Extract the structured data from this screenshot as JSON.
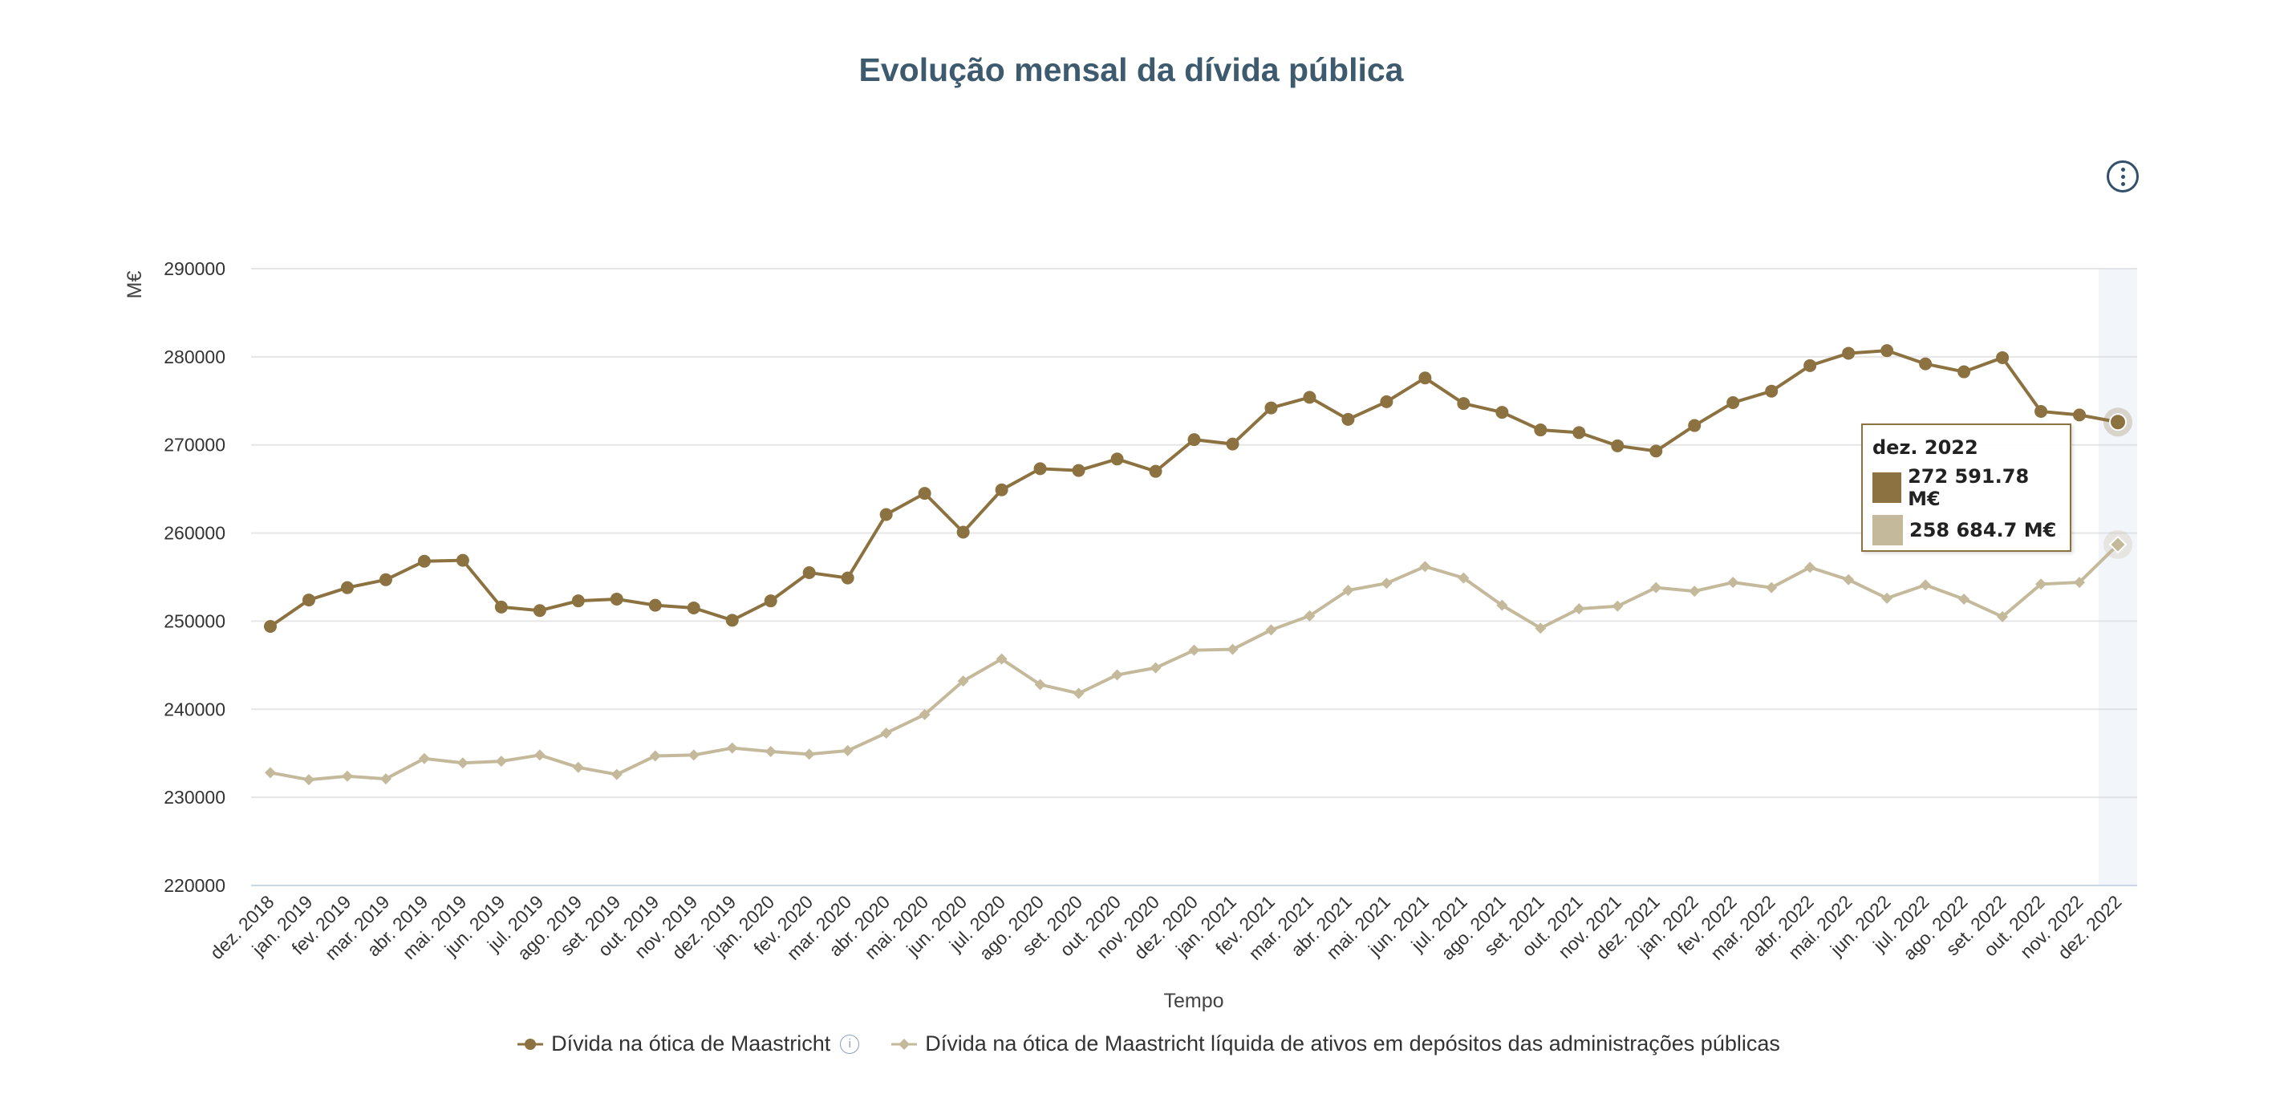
{
  "chart_data": {
    "type": "line",
    "title": "Evolução mensal da dívida pública",
    "xlabel": "Tempo",
    "ylabel": "M€",
    "ylim": [
      220000,
      290000
    ],
    "yticks": [
      "290000",
      "280000",
      "270000",
      "260000",
      "250000",
      "240000",
      "230000",
      "220000"
    ],
    "grid": true,
    "legend_position": "bottom",
    "categories": [
      "dez. 2018",
      "jan. 2019",
      "fev. 2019",
      "mar. 2019",
      "abr. 2019",
      "mai. 2019",
      "jun. 2019",
      "jul. 2019",
      "ago. 2019",
      "set. 2019",
      "out. 2019",
      "nov. 2019",
      "dez. 2019",
      "jan. 2020",
      "fev. 2020",
      "mar. 2020",
      "abr. 2020",
      "mai. 2020",
      "jun. 2020",
      "jul. 2020",
      "ago. 2020",
      "set. 2020",
      "out. 2020",
      "nov. 2020",
      "dez. 2020",
      "jan. 2021",
      "fev. 2021",
      "mar. 2021",
      "abr. 2021",
      "mai. 2021",
      "jun. 2021",
      "jul. 2021",
      "ago. 2021",
      "set. 2021",
      "out. 2021",
      "nov. 2021",
      "dez. 2021",
      "jan. 2022",
      "fev. 2022",
      "mar. 2022",
      "abr. 2022",
      "mai. 2022",
      "jun. 2022",
      "jul. 2022",
      "ago. 2022",
      "set. 2022",
      "out. 2022",
      "nov. 2022",
      "dez. 2022"
    ],
    "series": [
      {
        "name": "Dívida na ótica de Maastricht",
        "color": "#8b7240",
        "marker": "circle",
        "values": [
          249400,
          252400,
          253800,
          254700,
          256800,
          256900,
          251600,
          251200,
          252300,
          252500,
          251800,
          251500,
          250100,
          252300,
          255500,
          254900,
          262100,
          264500,
          260100,
          264900,
          267300,
          267100,
          268400,
          267000,
          270600,
          270100,
          274200,
          275400,
          272900,
          274900,
          277600,
          274700,
          273700,
          271700,
          271400,
          269900,
          269300,
          272200,
          274800,
          276100,
          279000,
          280400,
          280700,
          279200,
          278300,
          279900,
          273800,
          273400,
          272592
        ]
      },
      {
        "name": "Dívida na ótica de Maastricht líquida de ativos em depósitos das administrações públicas",
        "color": "#c4b99b",
        "marker": "diamond",
        "values": [
          232800,
          232000,
          232400,
          232100,
          234400,
          233900,
          234100,
          234800,
          233400,
          232600,
          234700,
          234800,
          235600,
          235200,
          234900,
          235300,
          237300,
          239400,
          243200,
          245700,
          242800,
          241800,
          243900,
          244700,
          246700,
          246800,
          249000,
          250600,
          253500,
          254300,
          256200,
          254900,
          251800,
          249200,
          251400,
          251700,
          253800,
          253400,
          254400,
          253800,
          256100,
          254700,
          252600,
          254100,
          252500,
          250500,
          254200,
          254400,
          258685
        ]
      }
    ],
    "highlighted_index": 48
  },
  "tooltip": {
    "header": "dez. 2022",
    "rows": [
      {
        "value": "272 591.78 M€",
        "color": "#8b7240"
      },
      {
        "value": "258 684.7 M€",
        "color": "#c4b99b"
      }
    ]
  },
  "legend": {
    "info_icon": "info-icon"
  },
  "menu": {
    "icon": "kebab-menu-icon"
  }
}
